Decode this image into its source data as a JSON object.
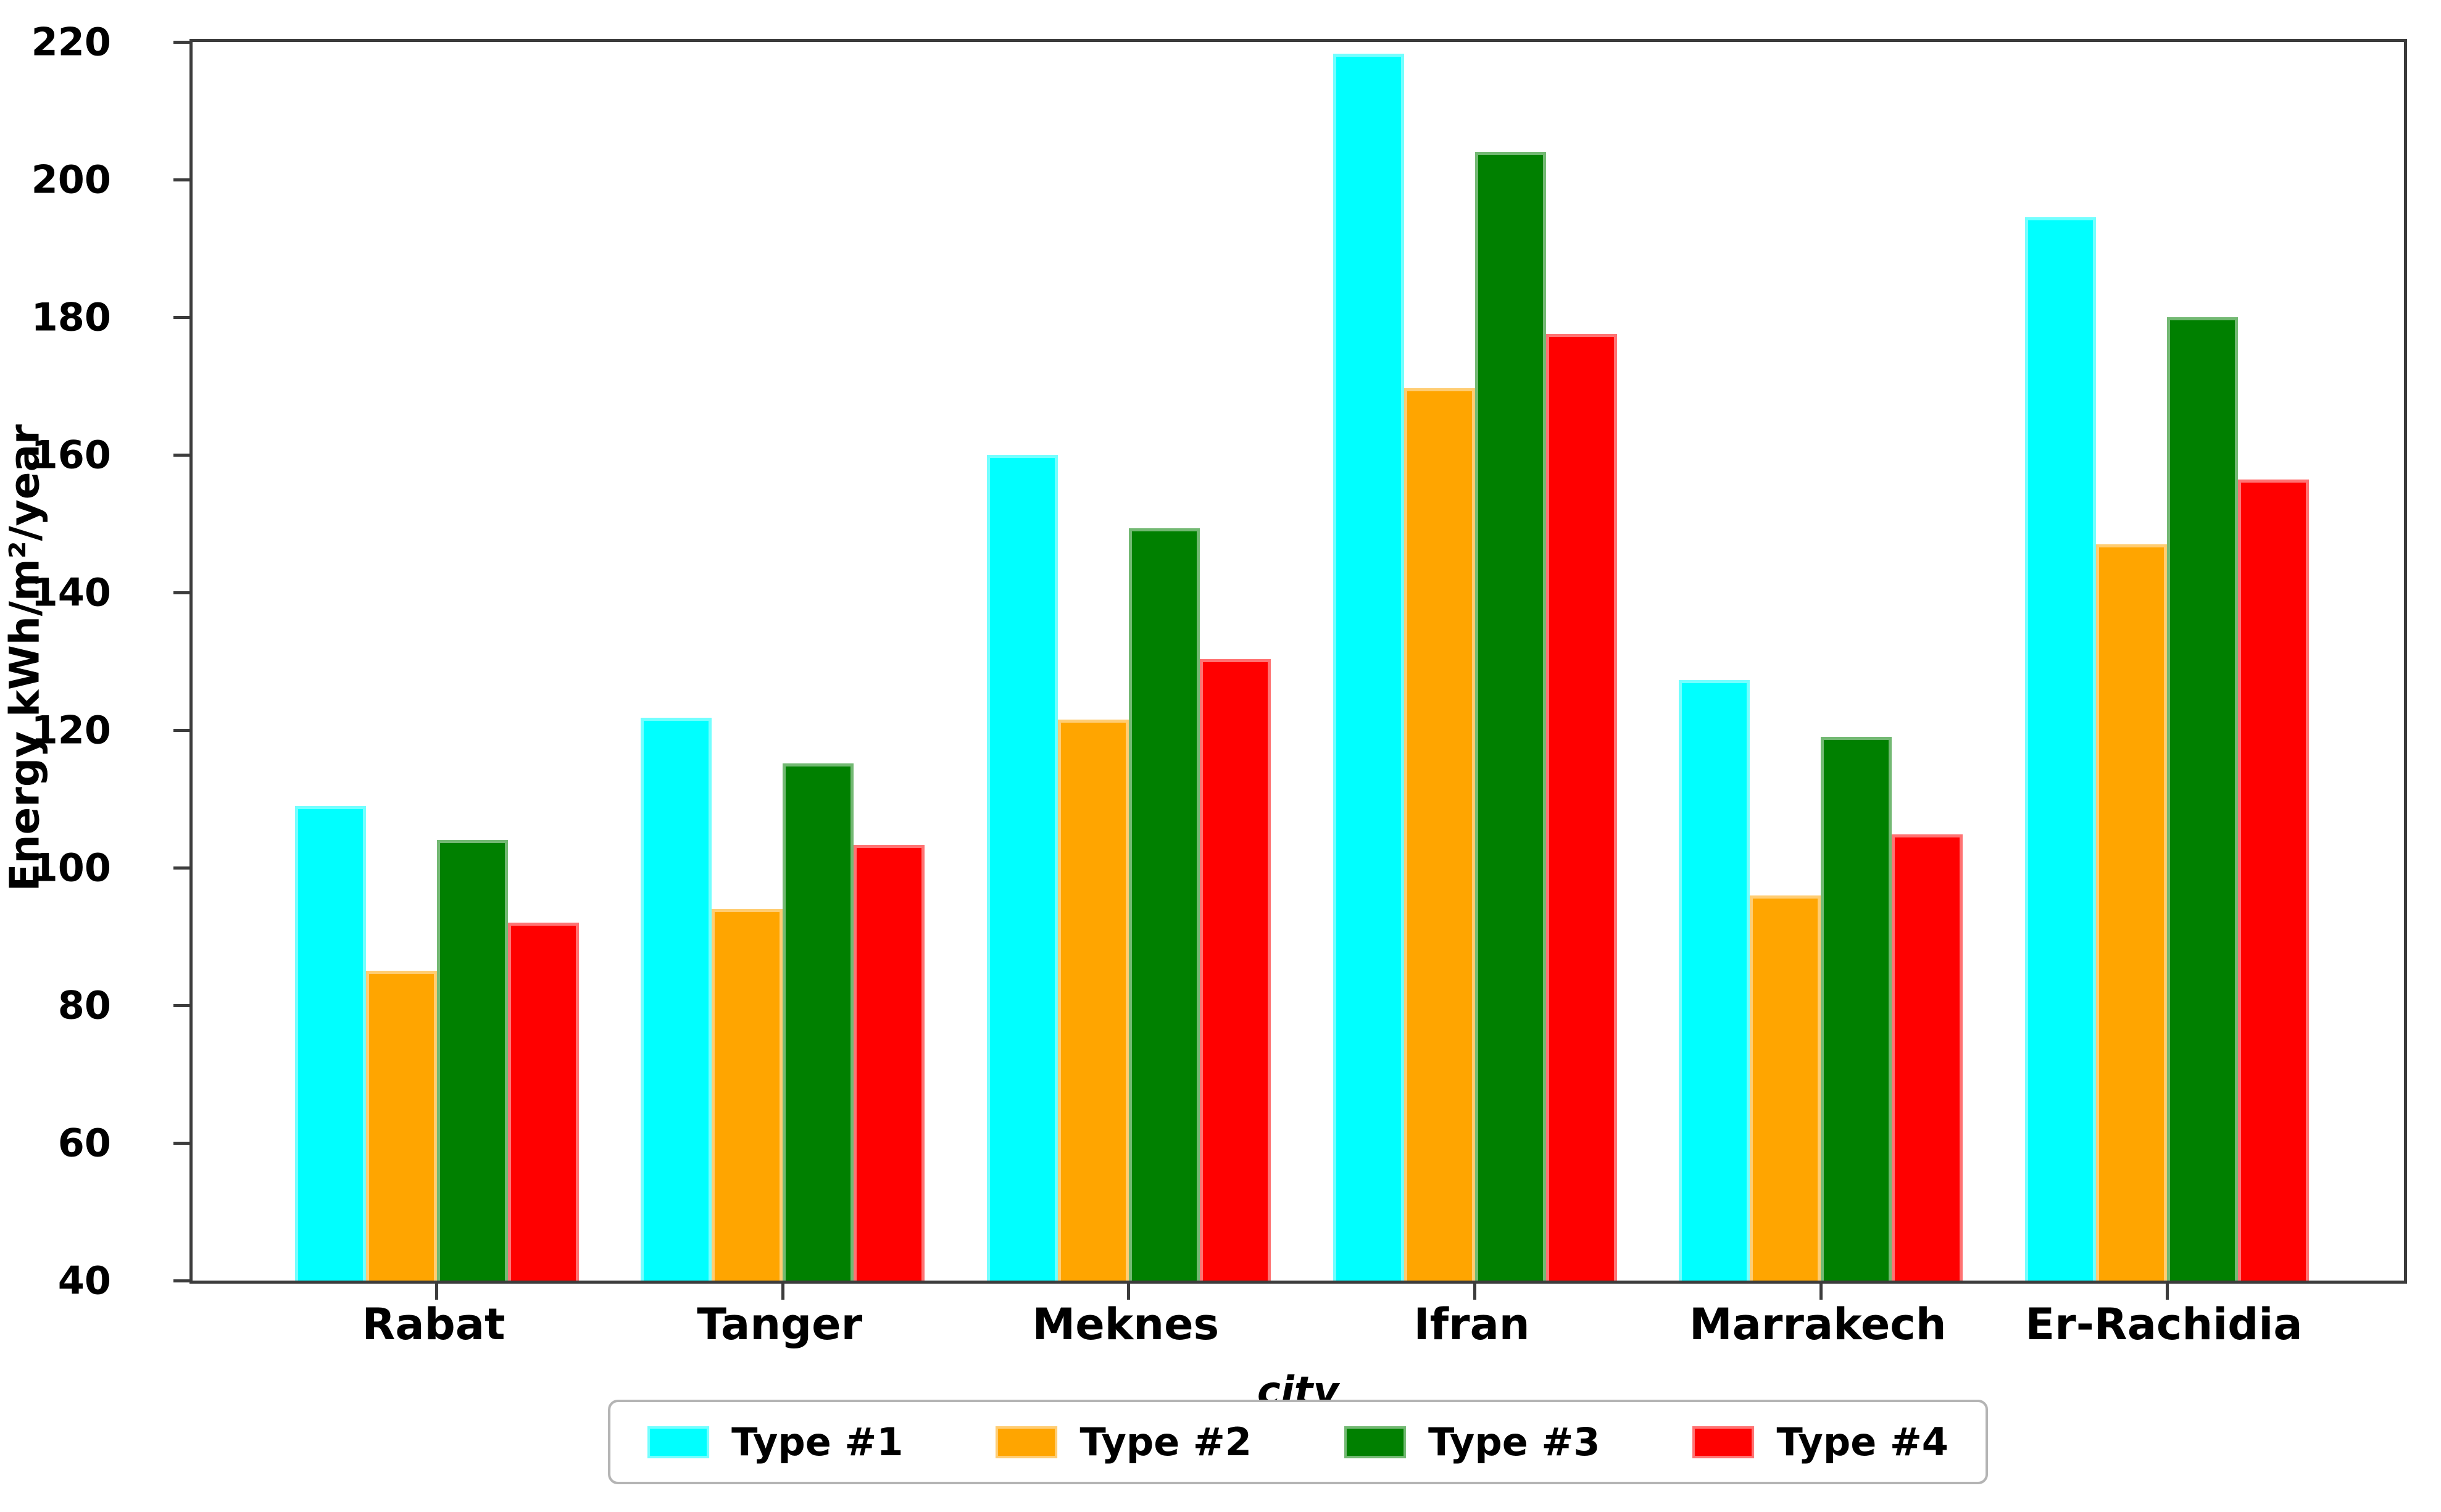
{
  "chart_data": {
    "type": "bar",
    "categories": [
      "Rabat",
      "Tanger",
      "Meknes",
      "Ifran",
      "Marrakech",
      "Er-Rachidia"
    ],
    "series": [
      {
        "name": "Type #1",
        "color": "#00FFFF",
        "values": [
          109.0,
          121.8,
          160.0,
          218.3,
          127.3,
          194.5
        ]
      },
      {
        "name": "Type #2",
        "color": "#FFA500",
        "values": [
          85.0,
          94.0,
          121.5,
          169.7,
          96.0,
          147.0
        ]
      },
      {
        "name": "Type #3",
        "color": "#008000",
        "values": [
          104.0,
          115.2,
          149.3,
          204.0,
          119.0,
          180.0
        ]
      },
      {
        "name": "Type #4",
        "color": "#FF0000",
        "values": [
          92.0,
          103.3,
          130.3,
          177.6,
          104.8,
          156.4
        ]
      }
    ],
    "xlabel": "city",
    "ylabel": "Energy kWh/m²/year",
    "ylim": [
      40,
      220
    ],
    "yticks": [
      40,
      60,
      80,
      100,
      120,
      140,
      160,
      180,
      200,
      220
    ],
    "grid": false,
    "legend_position": "bottom-center"
  }
}
